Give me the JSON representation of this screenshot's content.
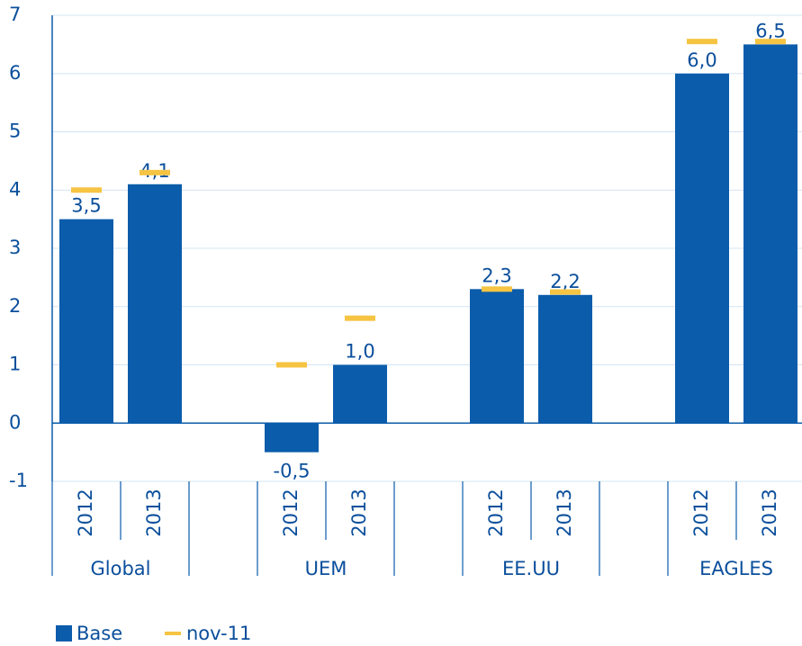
{
  "chart_data": {
    "type": "bar",
    "categories": [
      "2012",
      "2013",
      null,
      "2012",
      "2013",
      null,
      "2012",
      "2013",
      null,
      "2012",
      "2013"
    ],
    "groups": [
      "Global",
      "UEM",
      "EE.UU",
      "EAGLES"
    ],
    "series": [
      {
        "name": "Base",
        "color": "#0b5cab",
        "values": [
          3.5,
          4.1,
          null,
          -0.5,
          1.0,
          null,
          2.3,
          2.2,
          null,
          6.0,
          6.5
        ],
        "value_labels": [
          "3,5",
          "4,1",
          null,
          "-0,5",
          "1,0",
          null,
          "2,3",
          "2,2",
          null,
          "6,0",
          "6,5"
        ]
      },
      {
        "name": "nov-11",
        "type": "marker",
        "color": "#f6c443",
        "values": [
          4.0,
          4.3,
          null,
          1.0,
          1.8,
          null,
          2.3,
          2.25,
          null,
          6.55,
          6.55
        ]
      }
    ],
    "ylim": [
      -1,
      7
    ],
    "yticks": [
      -1,
      0,
      1,
      2,
      3,
      4,
      5,
      6,
      7
    ],
    "grid": true
  }
}
